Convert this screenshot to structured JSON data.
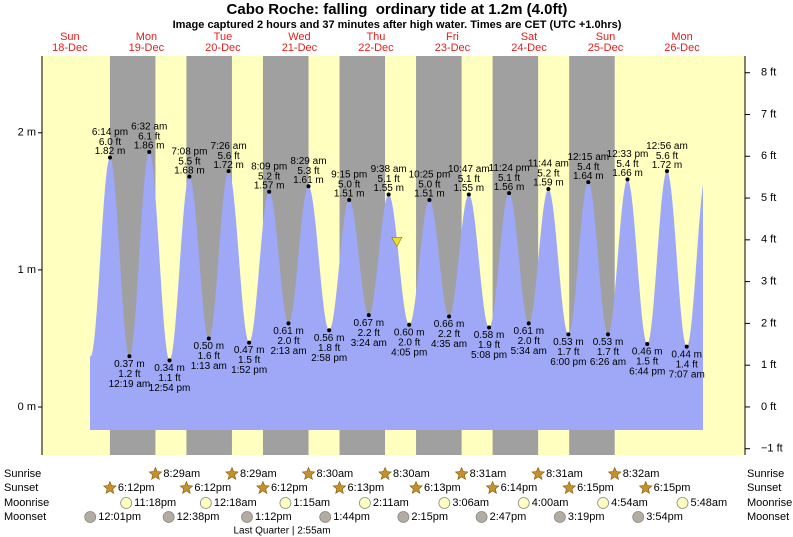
{
  "chart_data": {
    "type": "tide",
    "title": "Cabo Roche: falling  ordinary tide at 1.2m (4.0ft)",
    "subtitle": "Image captured 2 hours and 37 minutes after high water. Times are CET (UTC +1.0hrs)",
    "days": [
      {
        "weekday": "Sun",
        "date": "18-Dec"
      },
      {
        "weekday": "Mon",
        "date": "19-Dec"
      },
      {
        "weekday": "Tue",
        "date": "20-Dec"
      },
      {
        "weekday": "Wed",
        "date": "21-Dec"
      },
      {
        "weekday": "Thu",
        "date": "22-Dec"
      },
      {
        "weekday": "Fri",
        "date": "23-Dec"
      },
      {
        "weekday": "Sat",
        "date": "24-Dec"
      },
      {
        "weekday": "Sun",
        "date": "25-Dec"
      },
      {
        "weekday": "Mon",
        "date": "26-Dec"
      }
    ],
    "xlim": [
      -3.1,
      217.4
    ],
    "ylim": [
      -0.35,
      2.56
    ],
    "yticks": [
      {
        "value": 0,
        "label": "0 m"
      },
      {
        "value": 1,
        "label": "1 m"
      },
      {
        "value": 2,
        "label": "2 m"
      }
    ],
    "y2lim": [
      -1.15,
      8.4
    ],
    "y2ticks": [
      {
        "value": -1,
        "label": "−1 ft"
      },
      {
        "value": 0,
        "label": "0 ft"
      },
      {
        "value": 1,
        "label": "1 ft"
      },
      {
        "value": 2,
        "label": "2 ft"
      },
      {
        "value": 3,
        "label": "3 ft"
      },
      {
        "value": 4,
        "label": "4 ft"
      },
      {
        "value": 5,
        "label": "5 ft"
      },
      {
        "value": 6,
        "label": "6 ft"
      },
      {
        "value": 7,
        "label": "7 ft"
      },
      {
        "value": 8,
        "label": "8 ft"
      }
    ],
    "area_color": "#9ea8f7",
    "day_color": "#ffffc0",
    "night_color": "#a0a0a0",
    "extremes": [
      {
        "hour": 18.23,
        "time": "6:14 pm",
        "ft": "6.0 ft",
        "m": 1.82,
        "m_label": "1.82 m"
      },
      {
        "hour": 24.32,
        "time": "12:19 am",
        "ft": "1.2 ft",
        "m": 0.37,
        "m_label": "0.37 m"
      },
      {
        "hour": 30.53,
        "time": "6:32 am",
        "ft": "6.1 ft",
        "m": 1.86,
        "m_label": "1.86 m"
      },
      {
        "hour": 36.9,
        "time": "12:54 pm",
        "ft": "1.1 ft",
        "m": 0.34,
        "m_label": "0.34 m"
      },
      {
        "hour": 43.13,
        "time": "7:08 pm",
        "ft": "5.5 ft",
        "m": 1.68,
        "m_label": "1.68 m"
      },
      {
        "hour": 49.22,
        "time": "1:13 am",
        "ft": "1.6 ft",
        "m": 0.5,
        "m_label": "0.50 m"
      },
      {
        "hour": 55.43,
        "time": "7:26 am",
        "ft": "5.6 ft",
        "m": 1.72,
        "m_label": "1.72 m"
      },
      {
        "hour": 61.87,
        "time": "1:52 pm",
        "ft": "1.5 ft",
        "m": 0.47,
        "m_label": "0.47 m"
      },
      {
        "hour": 68.15,
        "time": "8:09 pm",
        "ft": "5.2 ft",
        "m": 1.57,
        "m_label": "1.57 m"
      },
      {
        "hour": 74.22,
        "time": "2:13 am",
        "ft": "2.0 ft",
        "m": 0.61,
        "m_label": "0.61 m"
      },
      {
        "hour": 80.48,
        "time": "8:29 am",
        "ft": "5.3 ft",
        "m": 1.61,
        "m_label": "1.61 m"
      },
      {
        "hour": 86.97,
        "time": "2:58 pm",
        "ft": "1.8 ft",
        "m": 0.56,
        "m_label": "0.56 m"
      },
      {
        "hour": 93.25,
        "time": "9:15 pm",
        "ft": "5.0 ft",
        "m": 1.51,
        "m_label": "1.51 m"
      },
      {
        "hour": 99.4,
        "time": "3:24 am",
        "ft": "2.2 ft",
        "m": 0.67,
        "m_label": "0.67 m"
      },
      {
        "hour": 105.63,
        "time": "9:38 am",
        "ft": "5.1 ft",
        "m": 1.55,
        "m_label": "1.55 m"
      },
      {
        "hour": 112.08,
        "time": "4:05 pm",
        "ft": "2.0 ft",
        "m": 0.6,
        "m_label": "0.60 m"
      },
      {
        "hour": 118.42,
        "time": "10:25 pm",
        "ft": "5.0 ft",
        "m": 1.51,
        "m_label": "1.51 m"
      },
      {
        "hour": 124.58,
        "time": "4:35 am",
        "ft": "2.2 ft",
        "m": 0.66,
        "m_label": "0.66 m"
      },
      {
        "hour": 130.78,
        "time": "10:47 am",
        "ft": "5.1 ft",
        "m": 1.55,
        "m_label": "1.55 m"
      },
      {
        "hour": 137.13,
        "time": "5:08 pm",
        "ft": "1.9 ft",
        "m": 0.58,
        "m_label": "0.58 m"
      },
      {
        "hour": 143.4,
        "time": "11:24 pm",
        "ft": "5.1 ft",
        "m": 1.56,
        "m_label": "1.56 m"
      },
      {
        "hour": 149.57,
        "time": "5:34 am",
        "ft": "2.0 ft",
        "m": 0.61,
        "m_label": "0.61 m"
      },
      {
        "hour": 155.73,
        "time": "11:44 am",
        "ft": "5.2 ft",
        "m": 1.59,
        "m_label": "1.59 m"
      },
      {
        "hour": 162.0,
        "time": "6:00 pm",
        "ft": "1.7 ft",
        "m": 0.53,
        "m_label": "0.53 m"
      },
      {
        "hour": 168.25,
        "time": "12:15 am",
        "ft": "5.4 ft",
        "m": 1.64,
        "m_label": "1.64 m"
      },
      {
        "hour": 174.43,
        "time": "6:26 am",
        "ft": "1.7 ft",
        "m": 0.53,
        "m_label": "0.53 m"
      },
      {
        "hour": 180.55,
        "time": "12:33 pm",
        "ft": "5.4 ft",
        "m": 1.66,
        "m_label": "1.66 m"
      },
      {
        "hour": 186.73,
        "time": "6:44 pm",
        "ft": "1.5 ft",
        "m": 0.46,
        "m_label": "0.46 m"
      },
      {
        "hour": 192.93,
        "time": "12:56 am",
        "ft": "5.6 ft",
        "m": 1.72,
        "m_label": "1.72 m"
      },
      {
        "hour": 199.12,
        "time": "7:07 am",
        "ft": "1.4 ft",
        "m": 0.44,
        "m_label": "0.44 m"
      }
    ],
    "now": {
      "hour": 108.2,
      "m": 1.2,
      "color": "#f0dc30"
    },
    "row_labels": [
      "Sunrise",
      "Sunset",
      "Moonrise",
      "Moonset"
    ],
    "events": [
      [
        {
          "hour": 32.48,
          "label": "8:29am"
        },
        {
          "hour": 56.48,
          "label": "8:29am"
        },
        {
          "hour": 80.5,
          "label": "8:30am"
        },
        {
          "hour": 104.5,
          "label": "8:30am"
        },
        {
          "hour": 128.52,
          "label": "8:31am"
        },
        {
          "hour": 152.52,
          "label": "8:31am"
        },
        {
          "hour": 176.53,
          "label": "8:32am"
        }
      ],
      [
        {
          "hour": 18.2,
          "label": "6:12pm"
        },
        {
          "hour": 42.2,
          "label": "6:12pm"
        },
        {
          "hour": 66.2,
          "label": "6:12pm"
        },
        {
          "hour": 90.22,
          "label": "6:13pm"
        },
        {
          "hour": 114.22,
          "label": "6:13pm"
        },
        {
          "hour": 138.23,
          "label": "6:14pm"
        },
        {
          "hour": 162.25,
          "label": "6:15pm"
        },
        {
          "hour": 186.25,
          "label": "6:15pm"
        }
      ],
      [
        {
          "hour": 23.3,
          "label": "11:18pm"
        },
        {
          "hour": 48.3,
          "label": "12:18am"
        },
        {
          "hour": 73.25,
          "label": "1:15am"
        },
        {
          "hour": 98.18,
          "label": "2:11am"
        },
        {
          "hour": 123.1,
          "label": "3:06am"
        },
        {
          "hour": 148.0,
          "label": "4:00am"
        },
        {
          "hour": 172.9,
          "label": "4:54am"
        },
        {
          "hour": 197.8,
          "label": "5:48am"
        }
      ],
      [
        {
          "hour": 12.02,
          "label": "12:01pm"
        },
        {
          "hour": 36.63,
          "label": "12:38pm"
        },
        {
          "hour": 61.2,
          "label": "1:12pm"
        },
        {
          "hour": 85.73,
          "label": "1:44pm"
        },
        {
          "hour": 110.25,
          "label": "2:15pm"
        },
        {
          "hour": 134.78,
          "label": "2:47pm"
        },
        {
          "hour": 159.32,
          "label": "3:19pm"
        },
        {
          "hour": 183.9,
          "label": "3:54pm"
        }
      ]
    ],
    "moon_phase": "Last Quarter | 2:55am"
  }
}
